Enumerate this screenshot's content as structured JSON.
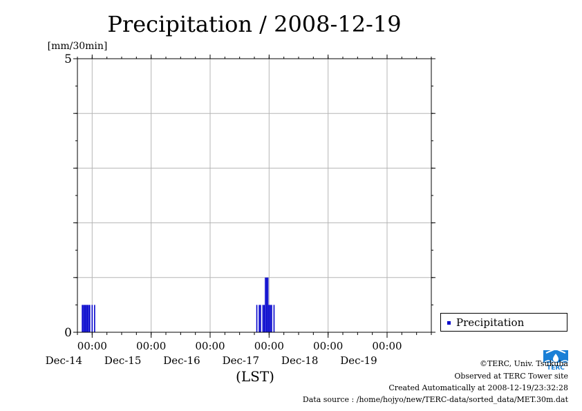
{
  "chart_data": {
    "type": "bar",
    "title": "Precipitation / 2008-12-19",
    "ylabel": "[mm/30min]",
    "xlabel": "(LST)",
    "ylim": [
      0,
      5
    ],
    "y_ticks": [
      "0",
      "5"
    ],
    "x_start": "2008-12-13 18:00",
    "x_end": "2008-12-19 18:00",
    "x_tick_time_label": "00:00",
    "x_ticks": [
      {
        "time": "2008-12-14 00:00",
        "date_label": "Dec-14"
      },
      {
        "time": "2008-12-15 00:00",
        "date_label": "Dec-15"
      },
      {
        "time": "2008-12-16 00:00",
        "date_label": "Dec-16"
      },
      {
        "time": "2008-12-17 00:00",
        "date_label": "Dec-17"
      },
      {
        "time": "2008-12-18 00:00",
        "date_label": "Dec-18"
      },
      {
        "time": "2008-12-19 00:00",
        "date_label": "Dec-19"
      }
    ],
    "grid": true,
    "legend": {
      "position": "right",
      "entries": [
        "Precipitation"
      ]
    },
    "series": [
      {
        "name": "Precipitation",
        "color": "#0000cc",
        "points": [
          {
            "t": "2008-12-13 20:00",
            "v": 0.5
          },
          {
            "t": "2008-12-13 20:30",
            "v": 0.5
          },
          {
            "t": "2008-12-13 21:00",
            "v": 0.5
          },
          {
            "t": "2008-12-13 21:30",
            "v": 0.5
          },
          {
            "t": "2008-12-13 22:00",
            "v": 0.5
          },
          {
            "t": "2008-12-13 22:30",
            "v": 0.5
          },
          {
            "t": "2008-12-13 23:00",
            "v": 0.5
          },
          {
            "t": "2008-12-14 00:00",
            "v": 0.5
          },
          {
            "t": "2008-12-14 01:00",
            "v": 0.5
          },
          {
            "t": "2008-12-16 19:00",
            "v": 0.5
          },
          {
            "t": "2008-12-16 20:00",
            "v": 0.5
          },
          {
            "t": "2008-12-16 20:30",
            "v": 0.5
          },
          {
            "t": "2008-12-16 21:30",
            "v": 0.5
          },
          {
            "t": "2008-12-16 22:00",
            "v": 0.5
          },
          {
            "t": "2008-12-16 22:30",
            "v": 1.0
          },
          {
            "t": "2008-12-16 23:00",
            "v": 1.0
          },
          {
            "t": "2008-12-16 23:30",
            "v": 1.0
          },
          {
            "t": "2008-12-17 00:00",
            "v": 0.5
          },
          {
            "t": "2008-12-17 00:30",
            "v": 0.5
          },
          {
            "t": "2008-12-17 01:00",
            "v": 0.5
          },
          {
            "t": "2008-12-17 02:00",
            "v": 0.5
          }
        ]
      }
    ]
  },
  "footer": {
    "copyright": "©TERC, Univ. Tsukuba",
    "observed": "Observed at TERC Tower site",
    "created": "Created Automatically at 2008-12-19/23:32:28",
    "source": "Data source : /home/hojyo/new/TERC-data/sorted_data/MET.30m.dat"
  },
  "logo": {
    "text": "TERC",
    "color": "#1a7fd6"
  }
}
